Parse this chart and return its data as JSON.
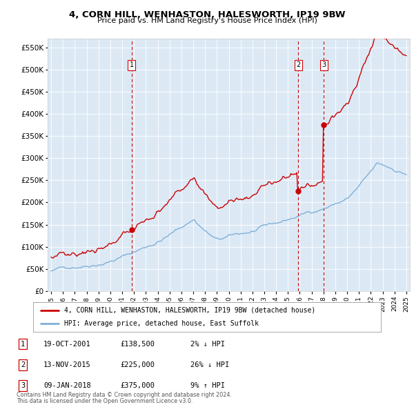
{
  "title1": "4, CORN HILL, WENHASTON, HALESWORTH, IP19 9BW",
  "title2": "Price paid vs. HM Land Registry's House Price Index (HPI)",
  "ylabel_ticks": [
    "£0",
    "£50K",
    "£100K",
    "£150K",
    "£200K",
    "£250K",
    "£300K",
    "£350K",
    "£400K",
    "£450K",
    "£500K",
    "£550K"
  ],
  "ytick_vals": [
    0,
    50000,
    100000,
    150000,
    200000,
    250000,
    300000,
    350000,
    400000,
    450000,
    500000,
    550000
  ],
  "xlim": [
    1994.7,
    2025.3
  ],
  "ylim": [
    0,
    570000
  ],
  "bg_color": "#dce9f5",
  "red_color": "#cc0000",
  "blue_color": "#7fb0d8",
  "sale_dates": [
    2001.8,
    2015.87,
    2018.03
  ],
  "sale_prices": [
    138500,
    225000,
    375000
  ],
  "sale_labels": [
    "1",
    "2",
    "3"
  ],
  "legend_line1": "4, CORN HILL, WENHASTON, HALESWORTH, IP19 9BW (detached house)",
  "legend_line2": "HPI: Average price, detached house, East Suffolk",
  "table_rows": [
    [
      "1",
      "19-OCT-2001",
      "£138,500",
      "2% ↓ HPI"
    ],
    [
      "2",
      "13-NOV-2015",
      "£225,000",
      "26% ↓ HPI"
    ],
    [
      "3",
      "09-JAN-2018",
      "£375,000",
      "9% ↑ HPI"
    ]
  ],
  "footnote1": "Contains HM Land Registry data © Crown copyright and database right 2024.",
  "footnote2": "This data is licensed under the Open Government Licence v3.0."
}
